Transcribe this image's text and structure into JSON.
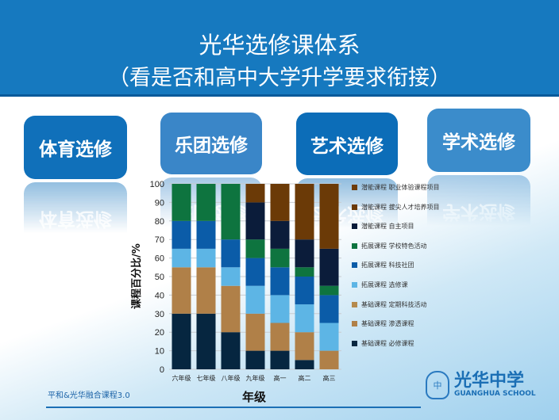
{
  "header": {
    "title": "光华选修课体系",
    "subtitle": "（看是否和高中大学升学要求衔接）"
  },
  "tiles": [
    {
      "label": "体育选修",
      "color": "#1070ba"
    },
    {
      "label": "乐团选修",
      "color": "#3a86c8"
    },
    {
      "label": "艺术选修",
      "color": "#0c6db8"
    },
    {
      "label": "学术选修",
      "color": "#3b8ccb"
    }
  ],
  "chart_data": {
    "type": "bar",
    "stacked": true,
    "xlabel": "年级",
    "ylabel": "课程百分比/%",
    "ylim": [
      0,
      100
    ],
    "yticks": [
      0,
      10,
      20,
      30,
      40,
      50,
      60,
      70,
      80,
      90,
      100
    ],
    "categories": [
      "六年级",
      "七年级",
      "八年级",
      "九年级",
      "高一",
      "高二",
      "高三"
    ],
    "series": [
      {
        "name": "基础课程 必修课程",
        "color": "#062640",
        "values": [
          30,
          30,
          20,
          10,
          10,
          5,
          0
        ]
      },
      {
        "name": "基础课程 渗透课程",
        "color": "#b08048",
        "values": [
          25,
          25,
          25,
          20,
          15,
          15,
          10
        ]
      },
      {
        "name": "基础课程 定期科技活动",
        "color": "#b58a4e",
        "values": [
          0,
          0,
          0,
          0,
          0,
          0,
          0
        ]
      },
      {
        "name": "拓展课程 选修课",
        "color": "#5db5e5",
        "values": [
          10,
          10,
          10,
          15,
          15,
          15,
          15
        ]
      },
      {
        "name": "拓展课程 科技社团",
        "color": "#0b5ca8",
        "values": [
          15,
          15,
          15,
          15,
          15,
          15,
          15
        ]
      },
      {
        "name": "拓展课程 学校特色活动",
        "color": "#0e743f",
        "values": [
          20,
          20,
          30,
          10,
          10,
          5,
          5
        ]
      },
      {
        "name": "潜能课程 自主项目",
        "color": "#0b1c3a",
        "values": [
          0,
          0,
          0,
          20,
          15,
          15,
          20
        ]
      },
      {
        "name": "潜能课程 拔尖人才培养项目",
        "color": "#6b3a07",
        "values": [
          0,
          0,
          0,
          10,
          20,
          30,
          35
        ]
      },
      {
        "name": "潜能课程 职业体验课程项目",
        "color": "#6e3c0a",
        "values": [
          0,
          0,
          0,
          0,
          0,
          0,
          0
        ]
      }
    ],
    "legend": "right"
  },
  "footer": {
    "text": "平和&光华融合课程3.0",
    "logo_name": "光华中学",
    "logo_en": "GUANGHUA SCHOOL",
    "seal": "中"
  }
}
